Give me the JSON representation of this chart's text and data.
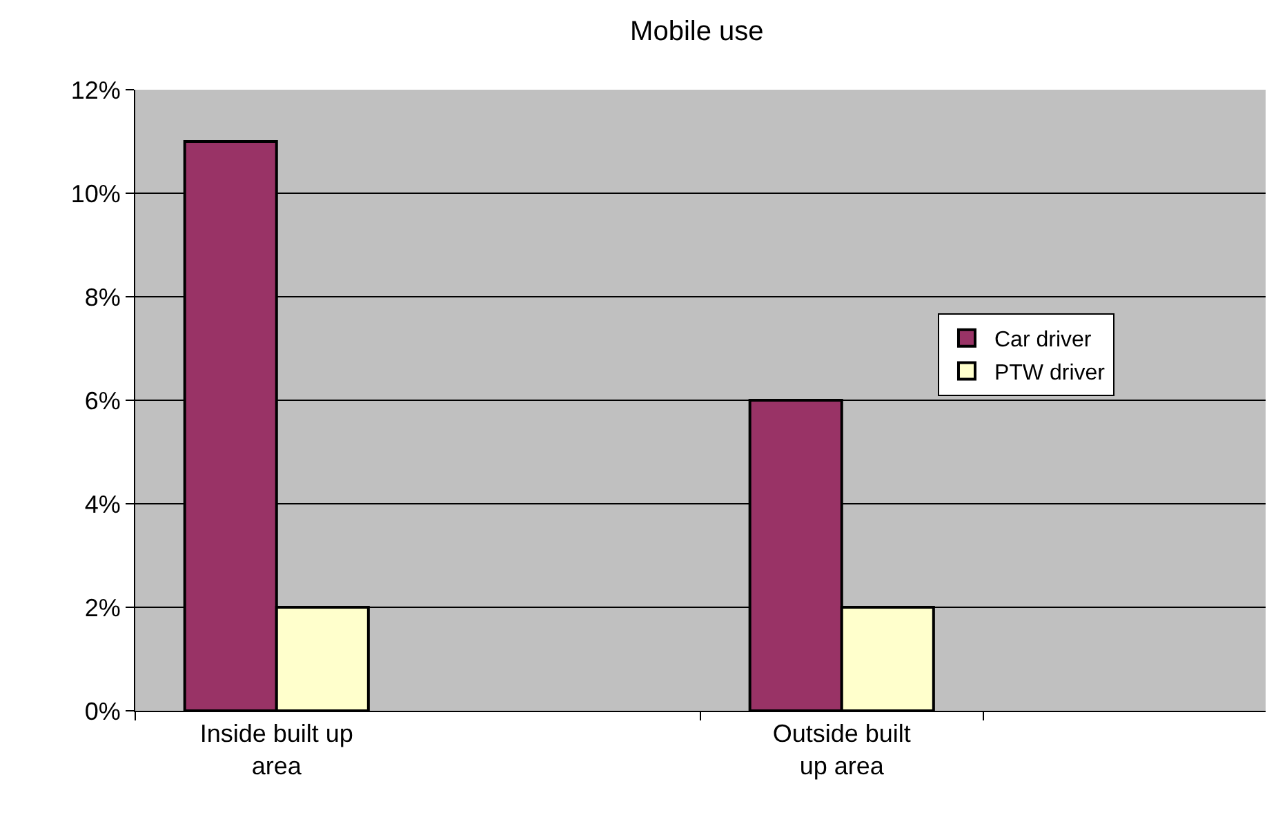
{
  "chart_data": {
    "type": "bar",
    "title": "Mobile use",
    "categories": [
      "Inside built up area",
      null,
      "Outside built up area",
      null
    ],
    "series": [
      {
        "name": "Car driver",
        "color": "#993366",
        "values": [
          11,
          null,
          6,
          null
        ]
      },
      {
        "name": "PTW driver",
        "color": "#ffffcc",
        "values": [
          2,
          null,
          2,
          null
        ]
      }
    ],
    "ylim": [
      0,
      12
    ],
    "yticks": [
      {
        "value": 0,
        "label": "0%"
      },
      {
        "value": 2,
        "label": "2%"
      },
      {
        "value": 4,
        "label": "4%"
      },
      {
        "value": 6,
        "label": "6%"
      },
      {
        "value": 8,
        "label": "8%"
      },
      {
        "value": 10,
        "label": "10%"
      },
      {
        "value": 12,
        "label": "12%"
      }
    ],
    "grid": "y",
    "legend": "right"
  }
}
